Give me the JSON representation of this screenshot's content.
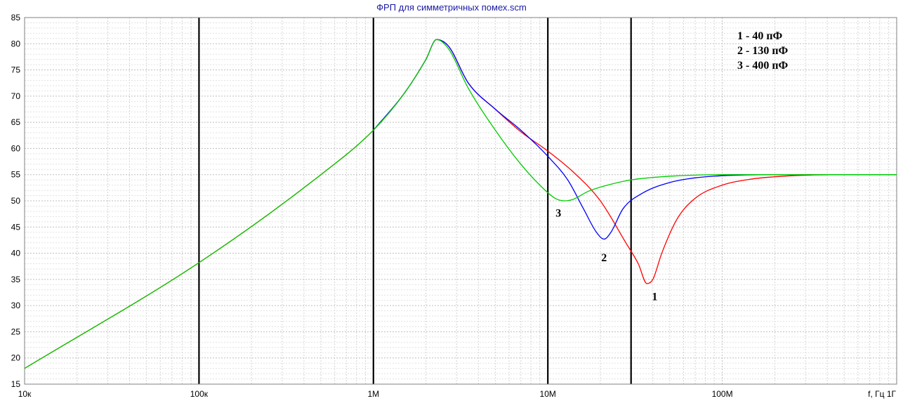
{
  "chart_data": {
    "type": "line",
    "title": "ФРП для симметричных помех.scm",
    "xlabel": "f, Гц",
    "ylabel": "",
    "x_scale": "log",
    "xlim": [
      10000,
      1000000000
    ],
    "ylim": [
      15,
      85
    ],
    "grid": true,
    "x_tick_labels": [
      {
        "value": 10000,
        "label": "10к"
      },
      {
        "value": 100000,
        "label": "100к"
      },
      {
        "value": 1000000,
        "label": "1М"
      },
      {
        "value": 10000000,
        "label": "10М"
      },
      {
        "value": 100000000,
        "label": "100М"
      },
      {
        "value": 1000000000,
        "label": "1Г"
      }
    ],
    "y_ticks": [
      15,
      20,
      25,
      30,
      35,
      40,
      45,
      50,
      55,
      60,
      65,
      70,
      75,
      80,
      85
    ],
    "marker_lines_x": [
      100000,
      1000000,
      10000000,
      30000000
    ],
    "legend": {
      "position": "top-right",
      "entries": [
        "1 - 40 пФ",
        "2 - 130 пФ",
        "3 - 400 пФ"
      ]
    },
    "series": [
      {
        "id": "1",
        "color": "#ff0000",
        "x": [
          10000,
          100000,
          500000,
          1000000,
          1500000,
          2000000,
          2300000,
          2700000,
          3500000,
          5000000,
          7000000,
          10000000,
          14000000,
          20000000,
          28000000,
          33000000,
          37000000,
          40000000,
          45000000,
          55000000,
          70000000,
          100000000,
          150000000,
          200000000,
          300000000,
          500000000,
          1000000000
        ],
        "y": [
          18,
          38.2,
          55,
          63.5,
          70.5,
          77,
          80.8,
          79.5,
          72.5,
          67.5,
          63.2,
          59.5,
          55.5,
          50,
          42,
          38,
          34.2,
          35,
          40,
          46.5,
          50.5,
          53,
          54.2,
          54.6,
          54.9,
          55,
          55
        ]
      },
      {
        "id": "2",
        "color": "#0000ff",
        "x": [
          1000000,
          1500000,
          2000000,
          2300000,
          2700000,
          3500000,
          5000000,
          7000000,
          10000000,
          13000000,
          16000000,
          19000000,
          21000000,
          23000000,
          27000000,
          35000000,
          50000000,
          70000000,
          100000000,
          200000000,
          500000000,
          1000000000
        ],
        "y": [
          63.5,
          70.5,
          77,
          80.8,
          79.5,
          72.5,
          67.5,
          63.5,
          58.5,
          54,
          48.5,
          44,
          42.7,
          44,
          48.5,
          51.5,
          53.5,
          54.4,
          54.8,
          55,
          55,
          55
        ]
      },
      {
        "id": "3",
        "color": "#00cc00",
        "x": [
          10000,
          100000,
          500000,
          1000000,
          1500000,
          2000000,
          2300000,
          2700000,
          3500000,
          5000000,
          7000000,
          9000000,
          11000000,
          12500000,
          14000000,
          17000000,
          22000000,
          30000000,
          50000000,
          100000000,
          300000000,
          1000000000
        ],
        "y": [
          18,
          38.2,
          55,
          63.5,
          70.5,
          77,
          80.8,
          79,
          71.5,
          63.5,
          57,
          53,
          50.5,
          50,
          50.3,
          51.8,
          53,
          54,
          54.7,
          55,
          55,
          55
        ]
      }
    ],
    "annotations": [
      {
        "text": "1",
        "x": 41000000,
        "y": 31
      },
      {
        "text": "2",
        "x": 21000000,
        "y": 38.5
      },
      {
        "text": "3",
        "x": 11500000,
        "y": 47
      }
    ]
  }
}
